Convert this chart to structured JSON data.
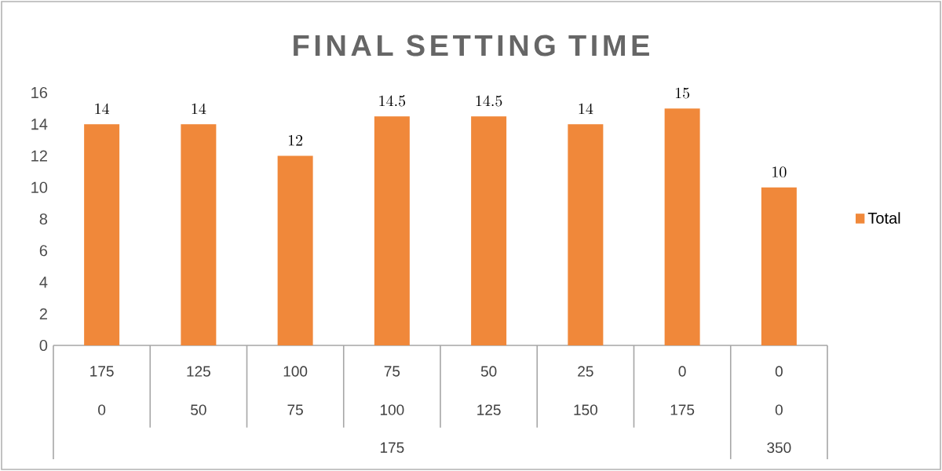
{
  "chart_data": {
    "type": "bar",
    "title": "FINAL SETTING TIME",
    "categories": [
      "175",
      "125",
      "100",
      "75",
      "50",
      "25",
      "0",
      "0"
    ],
    "annotations": [
      "0",
      "50",
      "75",
      "100",
      "125",
      "150",
      "175",
      "0",
      "175",
      "350"
    ],
    "series": [
      {
        "name": "Total",
        "color": "#f0883a",
        "values": [
          14,
          14,
          12,
          14.5,
          14.5,
          14,
          15,
          10
        ]
      }
    ],
    "ylim": [
      0,
      16
    ],
    "yticks": [
      0,
      2,
      4,
      6,
      8,
      10,
      12,
      14,
      16
    ],
    "data_labels": true,
    "legend": "right",
    "grid": false
  }
}
